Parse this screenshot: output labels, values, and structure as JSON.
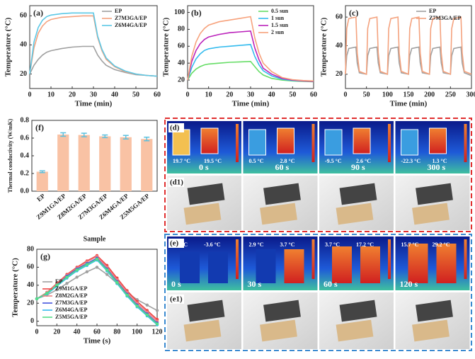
{
  "chart_data": [
    {
      "type": "line",
      "title": "(a)",
      "xlabel": "Time (min)",
      "ylabel": "Temperature (°C)",
      "legend": "upper right",
      "x": [
        0,
        2,
        4,
        6,
        8,
        10,
        15,
        20,
        25,
        30,
        32,
        34,
        36,
        40,
        45,
        50,
        55,
        60
      ],
      "xlim": [
        0,
        60
      ],
      "xticks": [
        0,
        10,
        20,
        30,
        40,
        50,
        60
      ],
      "ylim": [
        10,
        67
      ],
      "yticks": [
        20,
        40,
        60
      ],
      "series": [
        {
          "name": "EP",
          "color": "#a0a0a0",
          "values": [
            20,
            26,
            30,
            33,
            35,
            36,
            37.5,
            38.5,
            39,
            39,
            33,
            29,
            26,
            23,
            21,
            19.5,
            19,
            18.5
          ]
        },
        {
          "name": "Z7M3GA/EP",
          "color": "#f4a27e",
          "values": [
            20,
            38,
            48,
            53,
            56,
            57.5,
            59,
            59.5,
            60,
            60,
            45,
            36,
            30,
            25,
            21.5,
            20,
            19,
            18.5
          ]
        },
        {
          "name": "Z6M4GA/EP",
          "color": "#5cc8e6",
          "values": [
            20,
            42,
            52,
            57,
            59.5,
            60.5,
            61.5,
            62,
            62,
            62,
            46,
            37,
            31,
            25.5,
            22,
            20,
            19,
            18.5
          ]
        }
      ]
    },
    {
      "type": "line",
      "title": "(b)",
      "xlabel": "Time (min)",
      "ylabel": "Temperature (°C)",
      "legend": "upper right",
      "x": [
        0,
        2,
        4,
        6,
        8,
        10,
        15,
        20,
        25,
        30,
        32,
        34,
        36,
        40,
        45,
        50,
        55,
        60
      ],
      "xlim": [
        0,
        60
      ],
      "xticks": [
        0,
        10,
        20,
        30,
        40,
        50,
        60
      ],
      "ylim": [
        10,
        108
      ],
      "yticks": [
        20,
        40,
        60,
        80,
        100
      ],
      "series": [
        {
          "name": "0.5 sun",
          "color": "#66dd66",
          "values": [
            20,
            28,
            33,
            36,
            38,
            39,
            40,
            41,
            41.5,
            42,
            36,
            30,
            26,
            22,
            20,
            19,
            18.5,
            18
          ]
        },
        {
          "name": "1 sun",
          "color": "#33bbee",
          "values": [
            20,
            35,
            45,
            51,
            55,
            57,
            59,
            60,
            61,
            62,
            48,
            38,
            31,
            25,
            21,
            19.5,
            19,
            18.5
          ]
        },
        {
          "name": "1.5 sun",
          "color": "#bb22bb",
          "values": [
            20,
            42,
            55,
            63,
            68,
            71,
            74,
            76,
            77,
            78,
            58,
            44,
            34,
            27,
            22,
            20,
            19,
            18.5
          ]
        },
        {
          "name": "2 sun",
          "color": "#f7a27c",
          "values": [
            20,
            48,
            65,
            75,
            81,
            85,
            89,
            91,
            93,
            95,
            70,
            52,
            40,
            30,
            23,
            20.5,
            19.5,
            19
          ]
        }
      ]
    },
    {
      "type": "line",
      "title": "(c)",
      "xlabel": "Time (min)",
      "ylabel": "Temperature (°C)",
      "legend": "upper right",
      "x": [
        0,
        3,
        8,
        25,
        28,
        33,
        50,
        53,
        58,
        75,
        78,
        83,
        100,
        103,
        108,
        125,
        128,
        133,
        150,
        153,
        158,
        175,
        178,
        183,
        200,
        203,
        208,
        225,
        228,
        233,
        250,
        253,
        258,
        275,
        278,
        283,
        300
      ],
      "xlim": [
        0,
        300
      ],
      "xticks": [
        0,
        50,
        100,
        150,
        200,
        250,
        300
      ],
      "ylim": [
        10,
        68
      ],
      "yticks": [
        20,
        40,
        60
      ],
      "series": [
        {
          "name": "EP",
          "color": "#a0a0a0",
          "values": [
            20,
            33,
            38,
            39,
            28,
            21,
            20,
            33,
            38,
            39,
            28,
            21,
            20,
            33,
            38,
            39,
            28,
            21,
            20,
            33,
            38,
            39,
            28,
            21,
            20,
            33,
            38,
            39,
            28,
            21,
            20,
            33,
            38,
            39,
            28,
            21,
            19
          ]
        },
        {
          "name": "Z7M3GA/EP",
          "color": "#f4a27e",
          "values": [
            20,
            52,
            59,
            60,
            35,
            22,
            20,
            52,
            59,
            60,
            35,
            22,
            20,
            52,
            59,
            60,
            35,
            22,
            20,
            52,
            59,
            60,
            35,
            22,
            20,
            52,
            59,
            60,
            35,
            22,
            20,
            52,
            59,
            60,
            35,
            22,
            20
          ]
        }
      ]
    },
    {
      "type": "bar",
      "title": "(f)",
      "xlabel": "Sample",
      "ylabel": "Thermal conductivity (W/mK)",
      "categories": [
        "EP",
        "Z9M1GA/EP",
        "Z8M2GA/EP",
        "Z7M3GA/EP",
        "Z6M4GA/EP",
        "Z5M5GA/EP"
      ],
      "values": [
        0.22,
        0.64,
        0.635,
        0.62,
        0.61,
        0.59
      ],
      "errors": [
        0.01,
        0.02,
        0.02,
        0.015,
        0.02,
        0.02
      ],
      "color": "#f9c2a4",
      "error_color": "#5bc0de",
      "ylim": [
        0,
        0.8
      ],
      "yticks": [
        {
          "value": 0,
          "label": "0.0"
        },
        0.2,
        0.4,
        0.6,
        0.8
      ]
    },
    {
      "type": "line",
      "title": "(g)",
      "xlabel": "Time (s)",
      "ylabel": "Temperature (°C)",
      "legend": "lower left",
      "markers": true,
      "x": [
        0,
        10,
        20,
        30,
        40,
        50,
        60,
        70,
        80,
        90,
        100,
        110,
        120
      ],
      "xlim": [
        0,
        120
      ],
      "xticks": [
        0,
        20,
        40,
        60,
        80,
        100,
        120
      ],
      "ylim": [
        -5,
        80
      ],
      "yticks": [
        0,
        20,
        40,
        60,
        80
      ],
      "series": [
        {
          "name": "EP",
          "color": "#a0a0a0",
          "values": [
            25,
            29,
            35,
            42,
            49,
            55,
            60,
            52,
            42,
            32,
            24,
            18,
            12
          ]
        },
        {
          "name": "Z9M1GA/EP",
          "color": "#ee4444",
          "values": [
            25,
            32,
            42,
            52,
            60,
            67,
            73,
            62,
            48,
            34,
            22,
            12,
            2
          ]
        },
        {
          "name": "Z8M2GA/EP",
          "color": "#f08080",
          "values": [
            25,
            32,
            41,
            51,
            59,
            66,
            72,
            60,
            46,
            32,
            20,
            10,
            0
          ]
        },
        {
          "name": "Z7M3GA/EP",
          "color": "#4455dd",
          "values": [
            25,
            31,
            40,
            50,
            58,
            64,
            70,
            58,
            44,
            30,
            18,
            8,
            -2
          ]
        },
        {
          "name": "Z6M4GA/EP",
          "color": "#33bbee",
          "values": [
            25,
            30,
            39,
            48,
            56,
            62,
            68,
            56,
            42,
            28,
            16,
            6,
            -4
          ]
        },
        {
          "name": "Z5M5GA/EP",
          "color": "#55dd88",
          "values": [
            25,
            31,
            40,
            49,
            57,
            63,
            69,
            57,
            43,
            29,
            17,
            7,
            -3
          ]
        }
      ]
    }
  ],
  "panels": [
    {
      "label": "(d)",
      "frames": [
        {
          "texts": [
            "19.7 °C",
            "19.5 °C"
          ],
          "time": "0 s"
        },
        {
          "texts": [
            "0.5 °C",
            "2.8 °C"
          ],
          "time": "60 s"
        },
        {
          "texts": [
            "-9.5 °C",
            "2.6 °C"
          ],
          "time": "90 s"
        },
        {
          "texts": [
            "-22.3 °C",
            "1.3 °C"
          ],
          "time": "300 s"
        }
      ]
    },
    {
      "label": "(d1)"
    },
    {
      "label": "(e)",
      "frames": [
        {
          "texts": [
            "3.5 °C",
            "-3.6 °C"
          ],
          "time": "0 s"
        },
        {
          "texts": [
            "2.9 °C",
            "3.7 °C"
          ],
          "time": "30 s"
        },
        {
          "texts": [
            "3.7 °C",
            "17.2 °C"
          ],
          "time": "60 s"
        },
        {
          "texts": [
            "15.7 °C",
            "29.2 °C"
          ],
          "time": "120 s"
        }
      ]
    },
    {
      "label": "(e1)"
    }
  ]
}
